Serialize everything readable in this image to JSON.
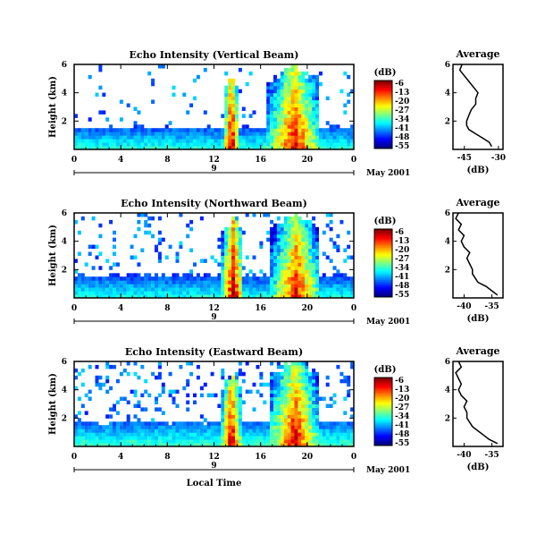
{
  "chart_data": [
    {
      "type": "heatmap",
      "title": "Echo Intensity (Vertical Beam)",
      "xlabel": "",
      "ylabel": "Height (km)",
      "xlim": [
        0,
        24
      ],
      "ylim": [
        0,
        6
      ],
      "x_ticks": [
        "0",
        "4",
        "8",
        "12",
        "16",
        "20",
        "0"
      ],
      "y_ticks": [
        "2",
        "4",
        "6"
      ],
      "date_tick": "9",
      "date_label": "May 2001",
      "colorbar": {
        "unit": "(dB)",
        "ticks": [
          "-6",
          "-13",
          "-20",
          "-27",
          "-34",
          "-41",
          "-48",
          "-55"
        ],
        "range": [
          -55,
          -6
        ]
      },
      "features": [
        {
          "type": "boundary_layer",
          "t_start": 0,
          "t_end": 24,
          "top_km": 1.4,
          "db": -45
        },
        {
          "type": "rain",
          "t_start": 12.7,
          "t_end": 14.0,
          "top_km": 5.3,
          "core_db": -7
        },
        {
          "type": "rain",
          "t_start": 16.5,
          "t_end": 21.0,
          "top_km": 5.8,
          "core_db": -10
        }
      ],
      "average": {
        "title": "Average",
        "xlabel": "(dB)",
        "x_ticks": [
          "-45",
          "-30"
        ],
        "y_ticks": [
          "2",
          "4",
          "6"
        ],
        "xlim": [
          -50,
          -28
        ],
        "ylim": [
          0,
          6
        ],
        "height_km": [
          0.2,
          0.5,
          0.8,
          1.1,
          1.4,
          1.7,
          2.0,
          2.4,
          2.8,
          3.2,
          3.6,
          4.0,
          4.4,
          4.8,
          5.2,
          5.6,
          6.0
        ],
        "db": [
          -33,
          -34,
          -37,
          -40,
          -43,
          -44,
          -44,
          -43,
          -42,
          -40,
          -40,
          -39,
          -41,
          -43,
          -45,
          -47,
          -46
        ]
      }
    },
    {
      "type": "heatmap",
      "title": "Echo Intensity (Northward Beam)",
      "xlabel": "",
      "ylabel": "Height (km)",
      "xlim": [
        0,
        24
      ],
      "ylim": [
        0,
        6
      ],
      "x_ticks": [
        "0",
        "4",
        "8",
        "12",
        "16",
        "20",
        "0"
      ],
      "y_ticks": [
        "2",
        "4",
        "6"
      ],
      "date_tick": "9",
      "date_label": "May 2001",
      "colorbar": {
        "unit": "(dB)",
        "ticks": [
          "-6",
          "-13",
          "-20",
          "-27",
          "-34",
          "-41",
          "-48",
          "-55"
        ],
        "range": [
          -55,
          -6
        ]
      },
      "features": [
        {
          "type": "boundary_layer",
          "t_start": 0,
          "t_end": 24,
          "top_km": 1.5,
          "db": -46
        },
        {
          "type": "rain",
          "t_start": 12.6,
          "t_end": 14.4,
          "top_km": 5.6,
          "core_db": -7
        },
        {
          "type": "rain",
          "t_start": 16.8,
          "t_end": 21.0,
          "top_km": 6.0,
          "core_db": -11
        }
      ],
      "average": {
        "title": "Average",
        "xlabel": "(dB)",
        "x_ticks": [
          "-40",
          "-35"
        ],
        "y_ticks": [
          "2",
          "4",
          "6"
        ],
        "xlim": [
          -42,
          -33
        ],
        "ylim": [
          0,
          6
        ],
        "height_km": [
          0.2,
          0.5,
          0.8,
          1.1,
          1.4,
          1.7,
          2.0,
          2.4,
          2.8,
          3.2,
          3.6,
          4.0,
          4.4,
          4.8,
          5.2,
          5.6,
          6.0
        ],
        "db": [
          -34,
          -35,
          -36,
          -37.5,
          -38,
          -38.5,
          -38.5,
          -39,
          -39.5,
          -39,
          -40,
          -40.5,
          -40,
          -41,
          -40.5,
          -41.5,
          -41
        ]
      }
    },
    {
      "type": "heatmap",
      "title": "Echo Intensity (Eastward Beam)",
      "xlabel": "Local Time",
      "ylabel": "Height (km)",
      "xlim": [
        0,
        24
      ],
      "ylim": [
        0,
        6
      ],
      "x_ticks": [
        "0",
        "4",
        "8",
        "12",
        "16",
        "20",
        "0"
      ],
      "y_ticks": [
        "2",
        "4",
        "6"
      ],
      "date_tick": "9",
      "date_label": "May 2001",
      "colorbar": {
        "unit": "(dB)",
        "ticks": [
          "-6",
          "-13",
          "-20",
          "-27",
          "-34",
          "-41",
          "-48",
          "-55"
        ],
        "range": [
          -55,
          -6
        ]
      },
      "features": [
        {
          "type": "boundary_layer",
          "t_start": 0,
          "t_end": 24,
          "top_km": 1.6,
          "db": -44
        },
        {
          "type": "rain",
          "t_start": 12.5,
          "t_end": 14.2,
          "top_km": 5.0,
          "core_db": -8
        },
        {
          "type": "rain",
          "t_start": 16.6,
          "t_end": 21.0,
          "top_km": 6.0,
          "core_db": -10
        }
      ],
      "average": {
        "title": "Average",
        "xlabel": "(dB)",
        "x_ticks": [
          "-40",
          "-35"
        ],
        "y_ticks": [
          "2",
          "4",
          "6"
        ],
        "xlim": [
          -42,
          -33
        ],
        "ylim": [
          0,
          6
        ],
        "height_km": [
          0.2,
          0.5,
          0.8,
          1.1,
          1.4,
          1.7,
          2.0,
          2.4,
          2.8,
          3.2,
          3.6,
          4.0,
          4.4,
          4.8,
          5.2,
          5.6,
          6.0
        ],
        "db": [
          -34,
          -35.5,
          -36.5,
          -37.5,
          -38.5,
          -39,
          -39.5,
          -39.5,
          -40,
          -39.5,
          -40.5,
          -41,
          -40.5,
          -41,
          -41.5,
          -40.5,
          -41
        ]
      }
    }
  ]
}
